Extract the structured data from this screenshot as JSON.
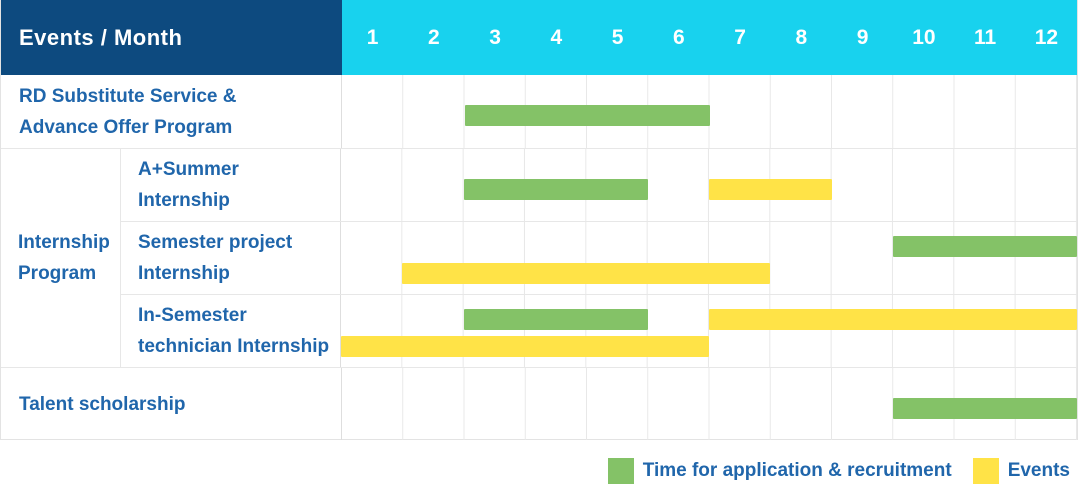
{
  "header": {
    "label": "Events / Month"
  },
  "colors": {
    "navy": "#0d4a7f",
    "cyan": "#18d2ee",
    "green": "#84c267",
    "yellow": "#ffe347",
    "label_blue": "#2066ab",
    "grid": "#e8e8e8"
  },
  "legend": [
    {
      "swatch": "green",
      "label": "Time for application & recruitment"
    },
    {
      "swatch": "yellow",
      "label": "Events"
    }
  ],
  "chart_data": {
    "type": "bar",
    "subtype": "gantt",
    "title": "Events / Month",
    "x": {
      "unit": "month",
      "ticks": [
        "1",
        "2",
        "3",
        "4",
        "5",
        "6",
        "7",
        "8",
        "9",
        "10",
        "11",
        "12"
      ],
      "range": [
        1,
        12
      ]
    },
    "series_legend": [
      {
        "name": "Time for application & recruitment",
        "color": "#84c267"
      },
      {
        "name": "Events",
        "color": "#ffe347"
      }
    ],
    "rows": [
      {
        "group": "",
        "label_lines": [
          "RD Substitute Service &",
          "Advance Offer Program"
        ],
        "bars": [
          {
            "series": "Time for application & recruitment",
            "color": "green",
            "start_month": 3,
            "end_month": 6,
            "track": "single"
          }
        ]
      },
      {
        "group": "Internship Program",
        "label_lines": [
          "A+Summer",
          "Internship"
        ],
        "bars": [
          {
            "series": "Time for application & recruitment",
            "color": "green",
            "start_month": 3,
            "end_month": 5,
            "track": "single"
          },
          {
            "series": "Events",
            "color": "yellow",
            "start_month": 7,
            "end_month": 8,
            "track": "single"
          }
        ]
      },
      {
        "group": "Internship Program",
        "label_lines": [
          "Semester project",
          "Internship"
        ],
        "bars": [
          {
            "series": "Time for application & recruitment",
            "color": "green",
            "start_month": 10,
            "end_month": 12,
            "track": "top"
          },
          {
            "series": "Events",
            "color": "yellow",
            "start_month": 2,
            "end_month": 7,
            "track": "bottom"
          }
        ]
      },
      {
        "group": "Internship Program",
        "label_lines": [
          "In-Semester",
          "technician Internship"
        ],
        "bars": [
          {
            "series": "Time for application & recruitment",
            "color": "green",
            "start_month": 3,
            "end_month": 5,
            "track": "top"
          },
          {
            "series": "Events",
            "color": "yellow",
            "start_month": 7,
            "end_month": 12,
            "track": "top"
          },
          {
            "series": "Events",
            "color": "yellow",
            "start_month": 1,
            "end_month": 6,
            "track": "bottom"
          }
        ]
      },
      {
        "group": "",
        "label_lines": [
          "Talent scholarship"
        ],
        "bars": [
          {
            "series": "Time for application & recruitment",
            "color": "green",
            "start_month": 10,
            "end_month": 12,
            "track": "single"
          }
        ]
      }
    ]
  }
}
